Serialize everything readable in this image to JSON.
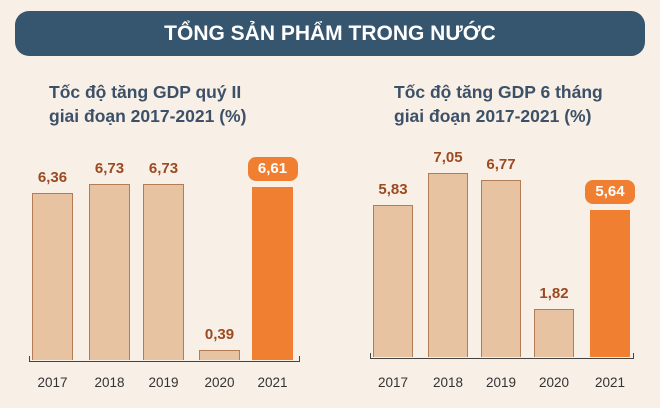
{
  "banner": {
    "title": "TỔNG SẢN PHẨM TRONG NƯỚC"
  },
  "colors": {
    "banner": "#36566f",
    "bar": "#e7c3a1",
    "highlight": "#f07f31",
    "value_label": "#9b4a22"
  },
  "chart_data": [
    {
      "type": "bar",
      "title_lines": [
        "Tốc độ tăng GDP quý II",
        "giai đoạn 2017-2021 (%)"
      ],
      "categories": [
        "2017",
        "2018",
        "2019",
        "2020",
        "2021"
      ],
      "values": [
        6.36,
        6.73,
        6.73,
        0.39,
        6.61
      ],
      "labels": [
        "6,36",
        "6,73",
        "6,73",
        "0,39",
        "6,61"
      ],
      "highlight": "2021",
      "grid": false
    },
    {
      "type": "bar",
      "title_lines": [
        "Tốc độ tăng GDP 6 tháng",
        "giai đoạn 2017-2021 (%)"
      ],
      "categories": [
        "2017",
        "2018",
        "2019",
        "2020",
        "2021"
      ],
      "values": [
        5.83,
        7.05,
        6.77,
        1.82,
        5.64
      ],
      "labels": [
        "5,83",
        "7,05",
        "6,77",
        "1,82",
        "5,64"
      ],
      "highlight": "2021",
      "grid": false
    }
  ]
}
